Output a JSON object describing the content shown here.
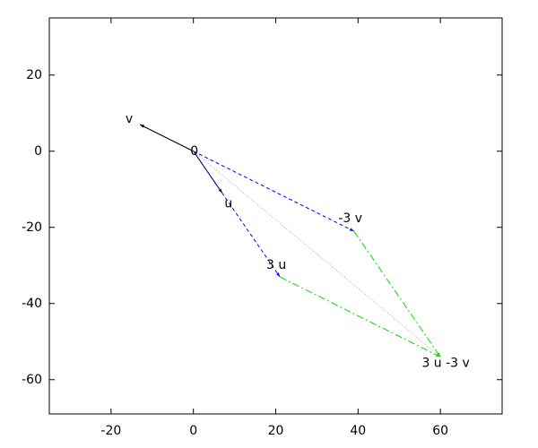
{
  "chart_data": {
    "type": "vector",
    "points": [
      {
        "label": "0",
        "x": 0,
        "y": 0
      },
      {
        "label": "v",
        "x": -13,
        "y": 7
      },
      {
        "label": "u",
        "x": 7,
        "y": -11
      },
      {
        "label": "-3 v",
        "x": 39,
        "y": -21
      },
      {
        "label": "3 u",
        "x": 21,
        "y": -33
      },
      {
        "label": "3 u -3 v",
        "x": 60,
        "y": -54
      }
    ],
    "segments": [
      {
        "from": 0,
        "to": 1,
        "color": "#000000",
        "style": "solid"
      },
      {
        "from": 0,
        "to": 2,
        "color": "#000000",
        "style": "solid"
      },
      {
        "from": 0,
        "to": 3,
        "color": "#0000ff",
        "style": "dashed"
      },
      {
        "from": 0,
        "to": 4,
        "color": "#0000ff",
        "style": "dashed"
      },
      {
        "from": 3,
        "to": 5,
        "color": "#00dd00",
        "style": "dashdot"
      },
      {
        "from": 4,
        "to": 5,
        "color": "#00dd00",
        "style": "dashdot"
      },
      {
        "from": 0,
        "to": 5,
        "color": "#aaaaaa",
        "style": "dotted"
      }
    ],
    "xlim": [
      -35,
      75
    ],
    "ylim": [
      -69,
      35
    ],
    "xticks": [
      -20,
      0,
      20,
      40,
      60
    ],
    "yticks": [
      20,
      0,
      -20,
      -40,
      -60
    ],
    "grid": false
  }
}
